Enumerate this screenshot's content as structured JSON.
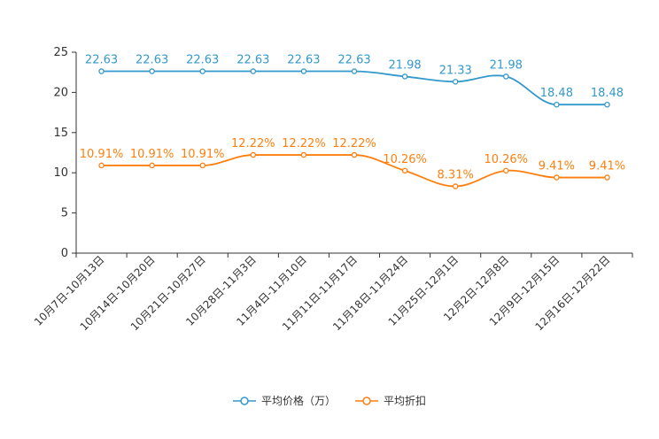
{
  "chart_data": {
    "type": "line",
    "title": "",
    "xlabel": "",
    "ylabel": "",
    "ylim": [
      0,
      25
    ],
    "yticks": [
      0,
      5,
      10,
      15,
      20,
      25
    ],
    "grid": false,
    "legend_position": "bottom-center",
    "categories": [
      "10月7日-10月13日",
      "10月14日-10月20日",
      "10月21日-10月27日",
      "10月28日-11月3日",
      "11月4日-11月10日",
      "11月11日-11月17日",
      "11月18日-11月24日",
      "11月25日-12月1日",
      "12月2日-12月8日",
      "12月9日-12月15日",
      "12月16日-12月22日"
    ],
    "series": [
      {
        "name": "平均价格（万）",
        "color": "#3399cc",
        "values": [
          22.63,
          22.63,
          22.63,
          22.63,
          22.63,
          22.63,
          21.98,
          21.33,
          21.98,
          18.48,
          18.48
        ],
        "labels": [
          "22.63",
          "22.63",
          "22.63",
          "22.63",
          "22.63",
          "22.63",
          "21.98",
          "21.33",
          "21.98",
          "18.48",
          "18.48"
        ]
      },
      {
        "name": "平均折扣",
        "color": "#ff7f0e",
        "values": [
          10.91,
          10.91,
          10.91,
          12.22,
          12.22,
          12.22,
          10.26,
          8.31,
          10.26,
          9.41,
          9.41
        ],
        "labels": [
          "10.91%",
          "10.91%",
          "10.91%",
          "12.22%",
          "12.22%",
          "12.22%",
          "10.26%",
          "8.31%",
          "10.26%",
          "9.41%",
          "9.41%"
        ]
      }
    ]
  }
}
